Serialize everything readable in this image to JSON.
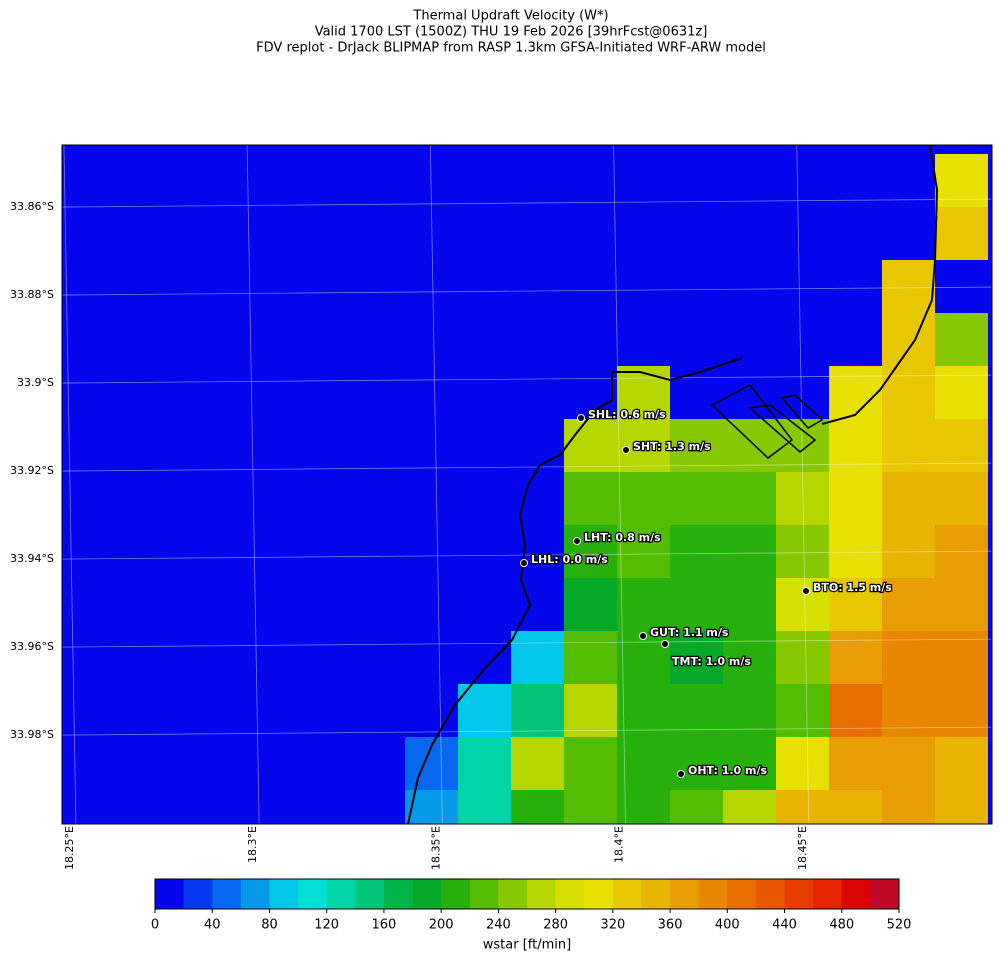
{
  "map": {
    "title": [
      "Thermal Updraft Velocity (W*)",
      "Valid 1700 LST (1500Z) THU 19 Feb 2026 [39hrFcst@0631z]",
      "FDV replot - DrJack BLIPMAP from RASP 1.3km GFSA-Initiated WRF-ARW model"
    ],
    "latlim": [
      -33.8459,
      -34.0002
    ],
    "lonlim": [
      18.2462,
      18.5
    ],
    "lat_ticks": [
      {
        "value": -33.86,
        "label": "33.86°S"
      },
      {
        "value": -33.88,
        "label": "33.88°S"
      },
      {
        "value": -33.9,
        "label": "33.9°S"
      },
      {
        "value": -33.92,
        "label": "33.92°S"
      },
      {
        "value": -33.94,
        "label": "33.94°S"
      },
      {
        "value": -33.96,
        "label": "33.96°S"
      },
      {
        "value": -33.98,
        "label": "33.98°S"
      }
    ],
    "lon_ticks": [
      {
        "value": 18.25,
        "label": "18.25°E"
      },
      {
        "value": 18.3,
        "label": "18.3°E"
      },
      {
        "value": 18.35,
        "label": "18.35°E"
      },
      {
        "value": 18.4,
        "label": "18.4°E"
      },
      {
        "value": 18.45,
        "label": "18.45°E"
      }
    ],
    "wstar_grid": [
      [
        0,
        0,
        0,
        0,
        0,
        0,
        0,
        0,
        0,
        0,
        310
      ],
      [
        0,
        0,
        0,
        0,
        0,
        0,
        0,
        0,
        0,
        0,
        330
      ],
      [
        0,
        0,
        0,
        0,
        0,
        0,
        0,
        0,
        0,
        330,
        0
      ],
      [
        0,
        0,
        0,
        0,
        0,
        0,
        0,
        0,
        0,
        330,
        250
      ],
      [
        0,
        0,
        0,
        0,
        270,
        0,
        0,
        0,
        310,
        330,
        310
      ],
      [
        0,
        0,
        0,
        270,
        270,
        250,
        250,
        250,
        310,
        330,
        330
      ],
      [
        0,
        0,
        0,
        230,
        230,
        230,
        230,
        270,
        310,
        350,
        350
      ],
      [
        0,
        0,
        0,
        210,
        230,
        210,
        210,
        250,
        310,
        350,
        370
      ],
      [
        0,
        0,
        0,
        190,
        210,
        210,
        210,
        290,
        330,
        370,
        370
      ],
      [
        0,
        0,
        90,
        230,
        210,
        190,
        210,
        250,
        370,
        390,
        390
      ],
      [
        0,
        90,
        150,
        270,
        210,
        210,
        210,
        230,
        410,
        390,
        390
      ],
      [
        50,
        130,
        270,
        230,
        210,
        210,
        210,
        310,
        370,
        370,
        350
      ],
      [
        70,
        130,
        210,
        230,
        210,
        230,
        270,
        350,
        350,
        370,
        350
      ]
    ],
    "stations": [
      "SHL: 0.6 m/s",
      "SHT: 1.3 m/s",
      "LHT: 0.8 m/s",
      "LHL: 0.0 m/s",
      "BTO: 1.5 m/s",
      "GUT: 1.1 m/s",
      "TMT: 1.0 m/s",
      "OHT: 1.0 m/s"
    ],
    "colorbar": {
      "label": "wstar [ft/min]",
      "ticks": [
        0,
        40,
        80,
        120,
        160,
        200,
        240,
        280,
        320,
        360,
        400,
        440,
        480,
        520
      ],
      "colors": [
        "#0505ee",
        "#0538ef",
        "#0568ef",
        "#0599e8",
        "#03c6e8",
        "#02e0d8",
        "#02d4a8",
        "#02c478",
        "#03b448",
        "#06a82a",
        "#27b00b",
        "#55bc04",
        "#88c802",
        "#b6d602",
        "#d6e002",
        "#e8e002",
        "#e8c802",
        "#e8b402",
        "#e89e02",
        "#e88802",
        "#e86e02",
        "#e85802",
        "#e83c02",
        "#e42402",
        "#dc0404",
        "#c00a28"
      ]
    }
  }
}
